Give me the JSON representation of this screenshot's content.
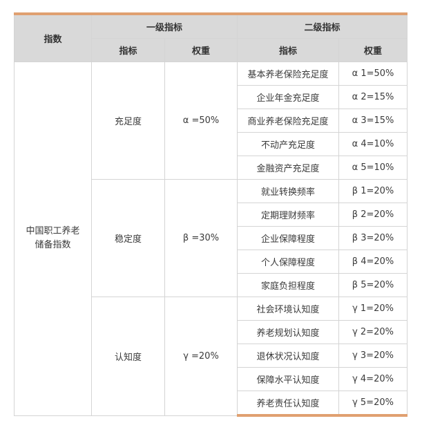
{
  "header": {
    "index": "指数",
    "level1": "一级指标",
    "level2": "二级指标",
    "indicator": "指标",
    "weight": "权重"
  },
  "index_name_line1": "中国职工养老",
  "index_name_line2": "储备指数",
  "groups": [
    {
      "name": "充足度",
      "weight": "α =50%",
      "items": [
        {
          "name": "基本养老保险充足度",
          "weight": "α 1=50%"
        },
        {
          "name": "企业年金充足度",
          "weight": "α 2=15%"
        },
        {
          "name": "商业养老保险充足度",
          "weight": "α 3=15%"
        },
        {
          "name": "不动产充足度",
          "weight": "α 4=10%"
        },
        {
          "name": "金融资产充足度",
          "weight": "α 5=10%"
        }
      ]
    },
    {
      "name": "稳定度",
      "weight": "β =30%",
      "items": [
        {
          "name": "就业转换频率",
          "weight": "β 1=20%"
        },
        {
          "name": "定期理财频率",
          "weight": "β 2=20%"
        },
        {
          "name": "企业保障程度",
          "weight": "β 3=20%"
        },
        {
          "name": "个人保障程度",
          "weight": "β 4=20%"
        },
        {
          "name": "家庭负担程度",
          "weight": "β 5=20%"
        }
      ]
    },
    {
      "name": "认知度",
      "weight": "γ =20%",
      "items": [
        {
          "name": "社会环境认知度",
          "weight": "γ 1=20%"
        },
        {
          "name": "养老规划认知度",
          "weight": "γ 2=20%"
        },
        {
          "name": "退休状况认知度",
          "weight": "γ 3=20%"
        },
        {
          "name": "保障水平认知度",
          "weight": "γ 4=20%"
        },
        {
          "name": "养老责任认知度",
          "weight": "γ 5=20%"
        }
      ]
    }
  ],
  "colors": {
    "accent": "#e0a070",
    "header_bg": "#d9d9d9",
    "border": "#d4d4d4"
  }
}
